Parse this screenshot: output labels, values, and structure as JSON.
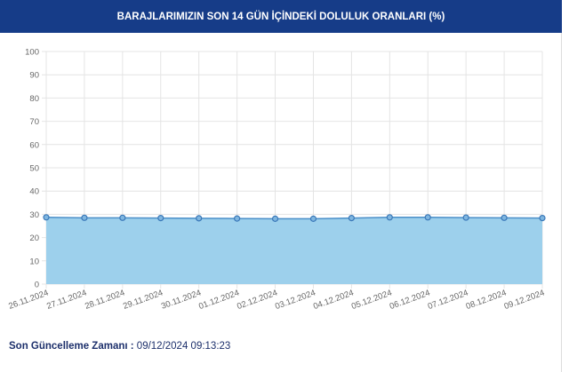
{
  "header": {
    "title": "BARAJLARIMIZIN SON 14 GÜN İÇİNDEKİ DOLULUK ORANLARI (%)"
  },
  "footer": {
    "label": "Son Güncelleme Zamanı :",
    "value": "09/12/2024 09:13:23"
  },
  "chart_data": {
    "type": "area",
    "title": "BARAJLARIMIZIN SON 14 GÜN İÇİNDEKİ DOLULUK ORANLARI (%)",
    "categories": [
      "26.11.2024",
      "27.11.2024",
      "28.11.2024",
      "29.11.2024",
      "30.11.2024",
      "01.12.2024",
      "02.12.2024",
      "03.12.2024",
      "04.12.2024",
      "05.12.2024",
      "06.12.2024",
      "07.12.2024",
      "08.12.2024",
      "09.12.2024"
    ],
    "values": [
      28.7,
      28.5,
      28.5,
      28.4,
      28.3,
      28.2,
      28.1,
      28.1,
      28.4,
      28.7,
      28.7,
      28.6,
      28.5,
      28.4
    ],
    "ylim": [
      0,
      100
    ],
    "yticks": [
      0,
      10,
      20,
      30,
      40,
      50,
      60,
      70,
      80,
      90,
      100
    ],
    "grid": true,
    "colors": {
      "fill": "#9dd0ec",
      "line": "#4a8fc9",
      "point": "#3a78b8",
      "header": "#163c88"
    }
  }
}
